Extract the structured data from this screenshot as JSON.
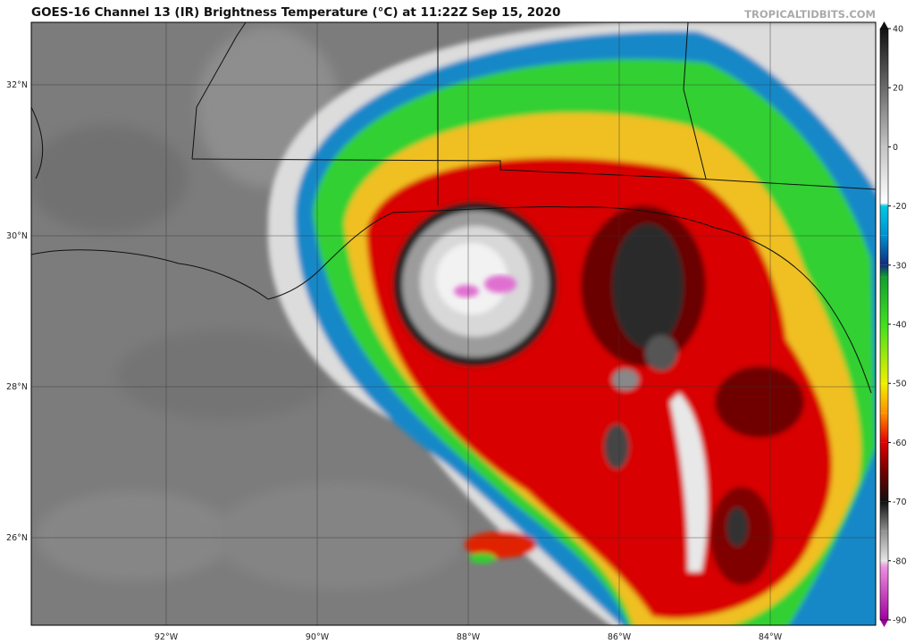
{
  "header": {
    "title": "GOES-16 Channel 13 (IR) Brightness Temperature (°C) at 11:22Z Sep 15, 2020",
    "source": "TROPICALTIDBITS.COM"
  },
  "map": {
    "lat_labels": [
      "32°N",
      "30°N",
      "28°N",
      "26°N"
    ],
    "lon_labels": [
      "92°W",
      "90°W",
      "88°W",
      "86°W",
      "84°W"
    ]
  },
  "colorbar": {
    "lim": [
      -90,
      40
    ],
    "ticks": [
      40,
      20,
      0,
      -20,
      -30,
      -40,
      -50,
      -60,
      -70,
      -80,
      -90
    ],
    "stops": [
      {
        "value": 40,
        "color": "#111111"
      },
      {
        "value": 0,
        "color": "#c4c4c4"
      },
      {
        "value": -19,
        "color": "#ffffff"
      },
      {
        "value": -20,
        "color": "#00c8e6"
      },
      {
        "value": -25,
        "color": "#0090d0"
      },
      {
        "value": -30,
        "color": "#102a80"
      },
      {
        "value": -32,
        "color": "#10a030"
      },
      {
        "value": -40,
        "color": "#40e020"
      },
      {
        "value": -50,
        "color": "#f0f000"
      },
      {
        "value": -55,
        "color": "#ff9000"
      },
      {
        "value": -60,
        "color": "#e00000"
      },
      {
        "value": -65,
        "color": "#700000"
      },
      {
        "value": -70,
        "color": "#101010"
      },
      {
        "value": -75,
        "color": "#909090"
      },
      {
        "value": -80,
        "color": "#e6e6e6"
      },
      {
        "value": -81,
        "color": "#f090e0"
      },
      {
        "value": -90,
        "color": "#a000a0"
      }
    ]
  }
}
